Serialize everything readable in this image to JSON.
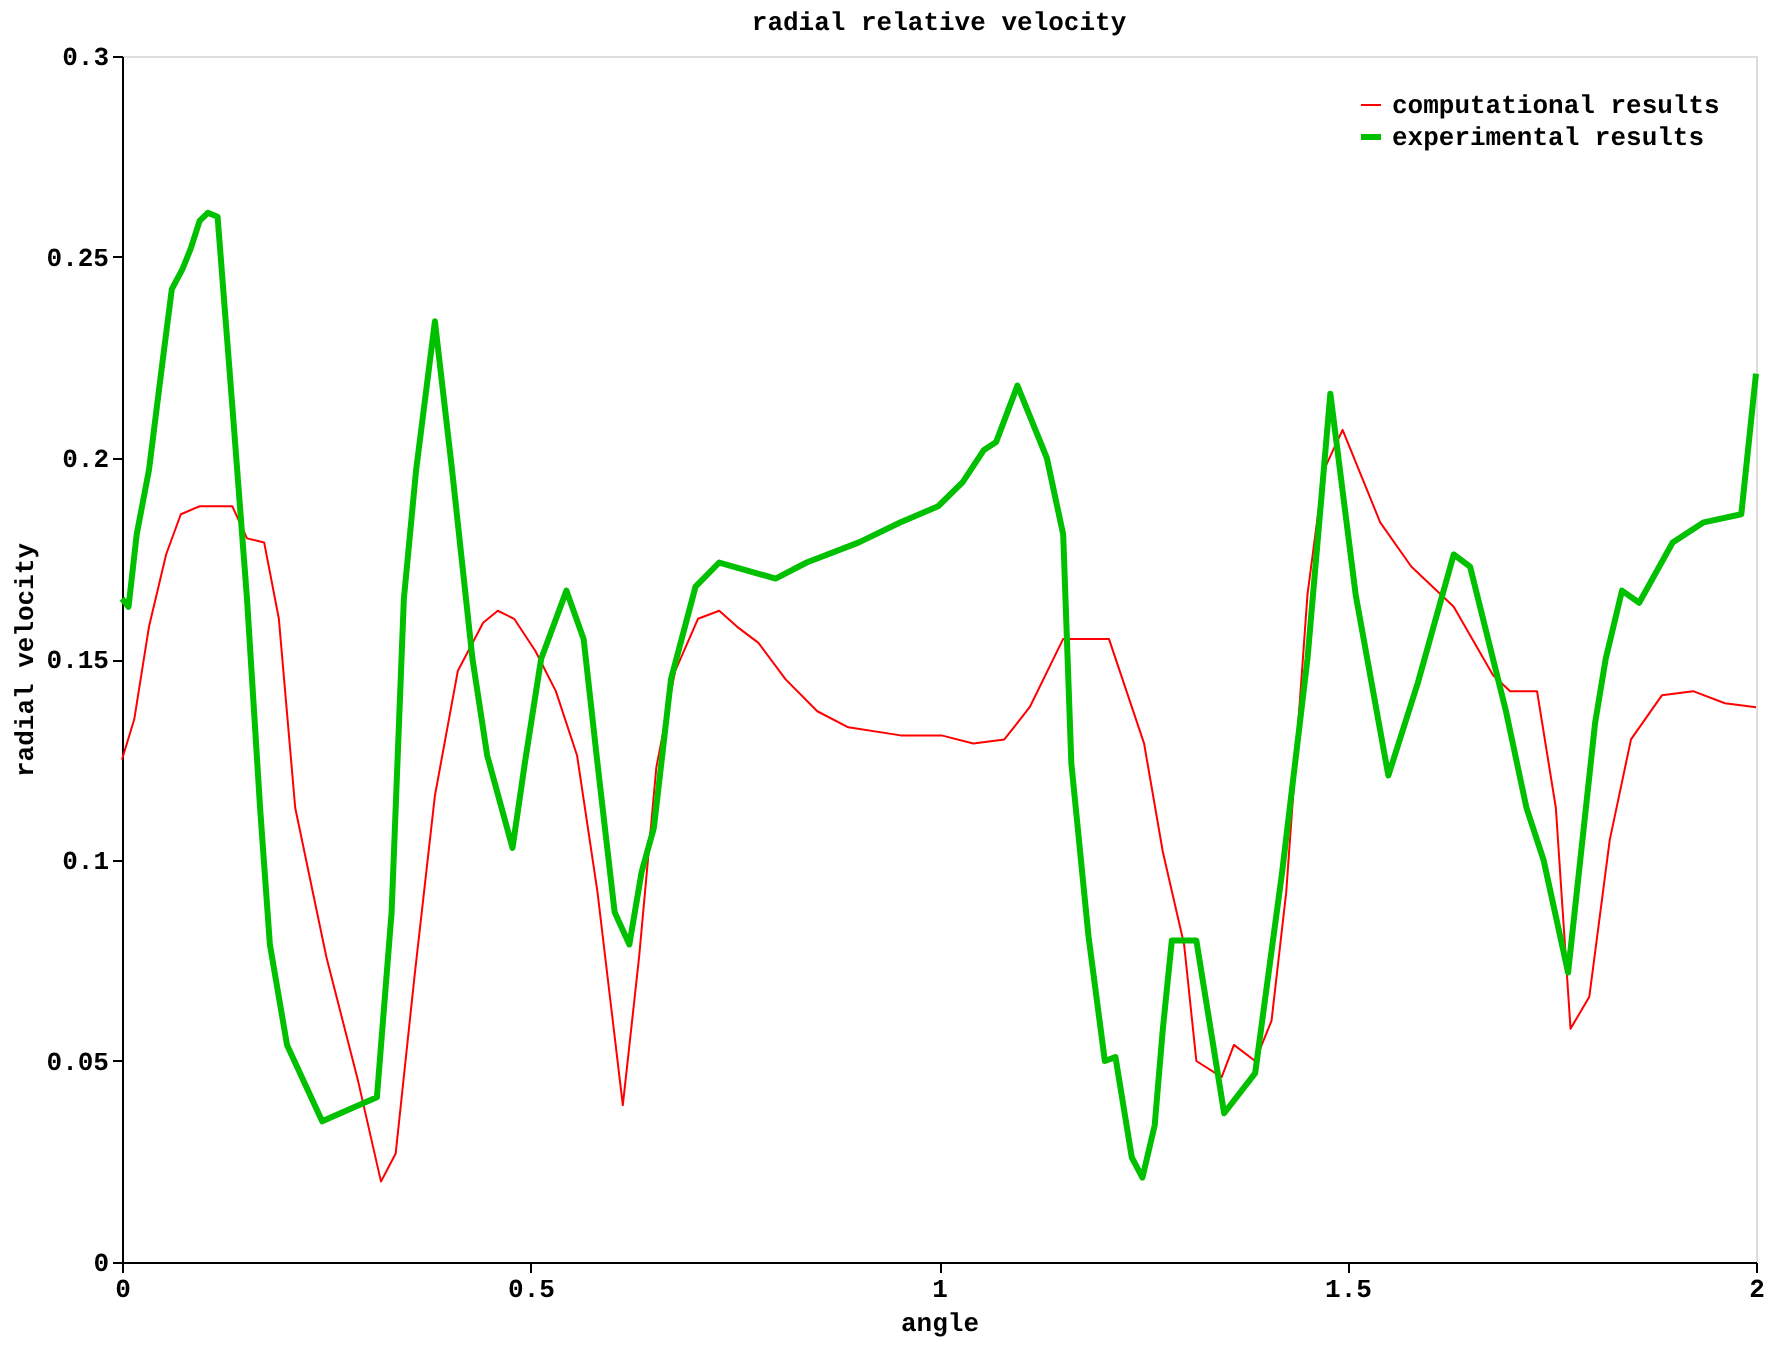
{
  "chart_data": {
    "type": "line",
    "title": "radial relative velocity",
    "xlabel": "angle",
    "ylabel": "radial velocity",
    "xlim": [
      0,
      2
    ],
    "ylim": [
      0,
      0.3
    ],
    "xticks": [
      0,
      0.5,
      1,
      1.5,
      2
    ],
    "yticks": [
      0,
      0.05,
      0.1,
      0.15,
      0.2,
      0.25,
      0.3
    ],
    "legend": "top right",
    "grid": false,
    "marker": "none",
    "series": [
      {
        "name": "computational results",
        "color": "#ff0000",
        "x": [
          0,
          0.015,
          0.033,
          0.054,
          0.072,
          0.095,
          0.135,
          0.153,
          0.174,
          0.192,
          0.212,
          0.25,
          0.289,
          0.317,
          0.335,
          0.358,
          0.383,
          0.411,
          0.442,
          0.46,
          0.48,
          0.506,
          0.531,
          0.557,
          0.582,
          0.613,
          0.633,
          0.654,
          0.677,
          0.705,
          0.731,
          0.753,
          0.779,
          0.812,
          0.851,
          0.889,
          0.953,
          1.003,
          1.042,
          1.08,
          1.111,
          1.152,
          1.208,
          1.251,
          1.274,
          1.3,
          1.315,
          1.346,
          1.361,
          1.387,
          1.407,
          1.425,
          1.451,
          1.471,
          1.494,
          1.54,
          1.578,
          1.63,
          1.678,
          1.699,
          1.732,
          1.755,
          1.773,
          1.796,
          1.821,
          1.847,
          1.885,
          1.923,
          1.962,
          2
        ],
        "values": [
          0.125,
          0.135,
          0.158,
          0.176,
          0.186,
          0.188,
          0.188,
          0.18,
          0.179,
          0.16,
          0.113,
          0.076,
          0.045,
          0.02,
          0.027,
          0.071,
          0.116,
          0.147,
          0.159,
          0.162,
          0.16,
          0.152,
          0.142,
          0.126,
          0.092,
          0.039,
          0.076,
          0.123,
          0.147,
          0.16,
          0.162,
          0.158,
          0.154,
          0.145,
          0.137,
          0.133,
          0.131,
          0.131,
          0.129,
          0.13,
          0.138,
          0.155,
          0.155,
          0.129,
          0.102,
          0.079,
          0.05,
          0.046,
          0.054,
          0.05,
          0.06,
          0.092,
          0.166,
          0.197,
          0.207,
          0.184,
          0.173,
          0.163,
          0.146,
          0.142,
          0.142,
          0.113,
          0.058,
          0.066,
          0.105,
          0.13,
          0.141,
          0.142,
          0.139,
          0.138
        ]
      },
      {
        "name": "experimental results",
        "color": "#00c000",
        "x": [
          0,
          0.008,
          0.018,
          0.033,
          0.049,
          0.061,
          0.074,
          0.084,
          0.095,
          0.105,
          0.117,
          0.135,
          0.153,
          0.169,
          0.181,
          0.202,
          0.245,
          0.312,
          0.33,
          0.345,
          0.36,
          0.383,
          0.404,
          0.429,
          0.447,
          0.478,
          0.493,
          0.513,
          0.544,
          0.565,
          0.582,
          0.603,
          0.621,
          0.636,
          0.651,
          0.672,
          0.702,
          0.731,
          0.8,
          0.838,
          0.902,
          0.953,
          0.999,
          1.029,
          1.055,
          1.07,
          1.096,
          1.132,
          1.152,
          1.162,
          1.183,
          1.203,
          1.216,
          1.236,
          1.249,
          1.264,
          1.274,
          1.285,
          1.315,
          1.349,
          1.387,
          1.42,
          1.451,
          1.479,
          1.51,
          1.55,
          1.586,
          1.63,
          1.65,
          1.694,
          1.719,
          1.74,
          1.77,
          1.803,
          1.816,
          1.836,
          1.857,
          1.898,
          1.936,
          1.982,
          2
        ],
        "values": [
          0.165,
          0.163,
          0.181,
          0.197,
          0.223,
          0.242,
          0.247,
          0.252,
          0.259,
          0.261,
          0.26,
          0.213,
          0.165,
          0.113,
          0.079,
          0.054,
          0.035,
          0.041,
          0.087,
          0.165,
          0.197,
          0.234,
          0.197,
          0.15,
          0.126,
          0.103,
          0.124,
          0.15,
          0.167,
          0.155,
          0.124,
          0.087,
          0.079,
          0.097,
          0.108,
          0.145,
          0.168,
          0.174,
          0.17,
          0.174,
          0.179,
          0.184,
          0.188,
          0.194,
          0.202,
          0.204,
          0.218,
          0.2,
          0.181,
          0.124,
          0.081,
          0.05,
          0.051,
          0.026,
          0.021,
          0.034,
          0.058,
          0.08,
          0.08,
          0.037,
          0.047,
          0.097,
          0.15,
          0.216,
          0.166,
          0.121,
          0.144,
          0.176,
          0.173,
          0.137,
          0.113,
          0.1,
          0.072,
          0.134,
          0.15,
          0.167,
          0.164,
          0.179,
          0.184,
          0.186,
          0.221
        ]
      }
    ]
  }
}
